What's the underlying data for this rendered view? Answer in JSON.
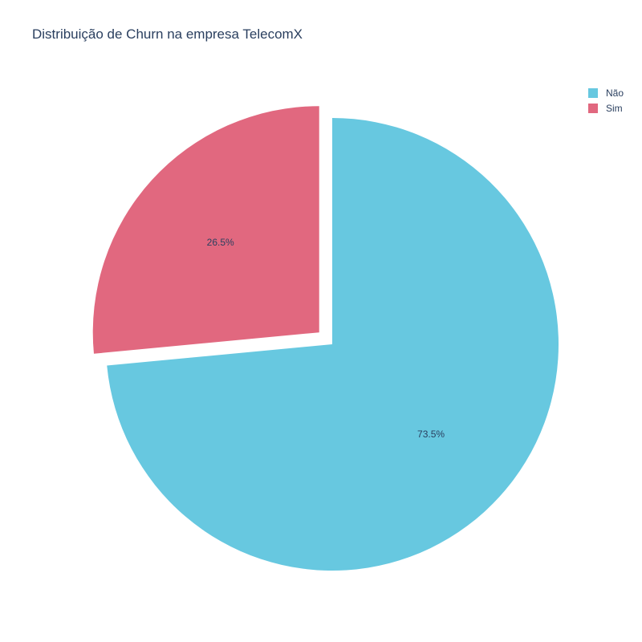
{
  "chart_data": {
    "type": "pie",
    "title": "Distribuição de Churn na empresa TelecomX",
    "categories": [
      "Não",
      "Sim"
    ],
    "values": [
      73.5,
      26.5
    ],
    "labels": [
      "73.5%",
      "26.5%"
    ],
    "colors": [
      "#67c8e0",
      "#e1687f"
    ],
    "pulled": [
      false,
      true
    ],
    "legend_position": "top-right"
  }
}
